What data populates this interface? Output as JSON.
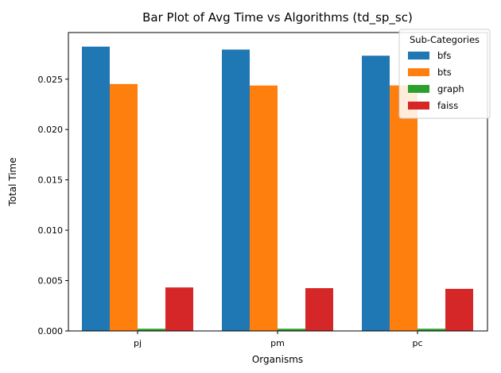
{
  "chart_data": {
    "type": "bar",
    "title": "Bar Plot of Avg Time vs Algorithms (td_sp_sc)",
    "xlabel": "Organisms",
    "ylabel": "Total Time",
    "categories": [
      "pj",
      "pm",
      "pc"
    ],
    "series": [
      {
        "name": "bfs",
        "color": "#1f77b4",
        "values": [
          0.02823,
          0.02794,
          0.02733
        ]
      },
      {
        "name": "bts",
        "color": "#ff7f0e",
        "values": [
          0.02452,
          0.02437,
          0.02438
        ]
      },
      {
        "name": "graph",
        "color": "#2ca02c",
        "values": [
          0.00022,
          0.00022,
          0.00022
        ]
      },
      {
        "name": "faiss",
        "color": "#d62728",
        "values": [
          0.00432,
          0.00425,
          0.00418
        ]
      }
    ],
    "ylim": [
      0,
      0.02963
    ],
    "yticks": [
      0.0,
      0.005,
      0.01,
      0.015,
      0.02,
      0.025
    ],
    "ytick_labels": [
      "0.000",
      "0.005",
      "0.010",
      "0.015",
      "0.020",
      "0.025"
    ],
    "grid": false,
    "legend": {
      "title": "Sub-Categories",
      "placement": "top-right"
    }
  }
}
